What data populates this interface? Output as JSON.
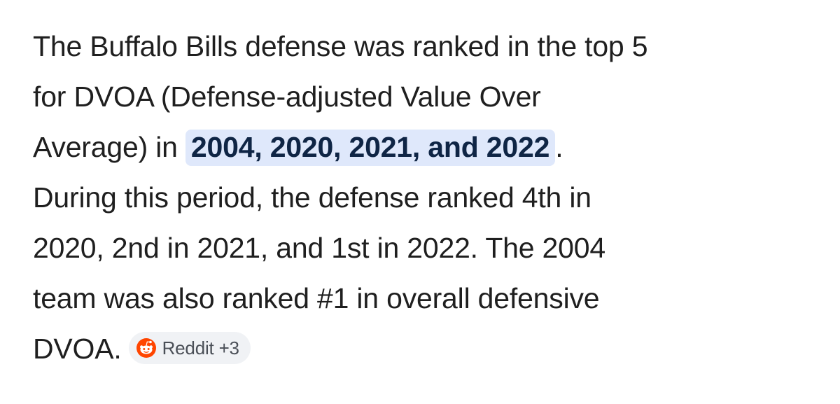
{
  "answer": {
    "line1": "The Buffalo Bills defense was ranked in the top 5",
    "line2": "for DVOA (Defense-adjusted Value Over",
    "line3_pre": "Average) in ",
    "line3_highlight": "2004, 2020, 2021, and 2022",
    "line3_post": ".",
    "line4": "During this period, the defense ranked 4th in",
    "line5": "2020, 2nd in 2021, and 1st in 2022. The 2004",
    "line6": "team was also ranked #1 in overall defensive",
    "line7": "DVOA."
  },
  "source_chip": {
    "label": "Reddit +3",
    "icon": "reddit-icon",
    "icon_color": "#ff4500"
  },
  "colors": {
    "highlight_bg": "#dfe8fb",
    "highlight_text": "#0f2545",
    "body_text": "#1f1f1f",
    "chip_bg": "#f0f2f5"
  }
}
